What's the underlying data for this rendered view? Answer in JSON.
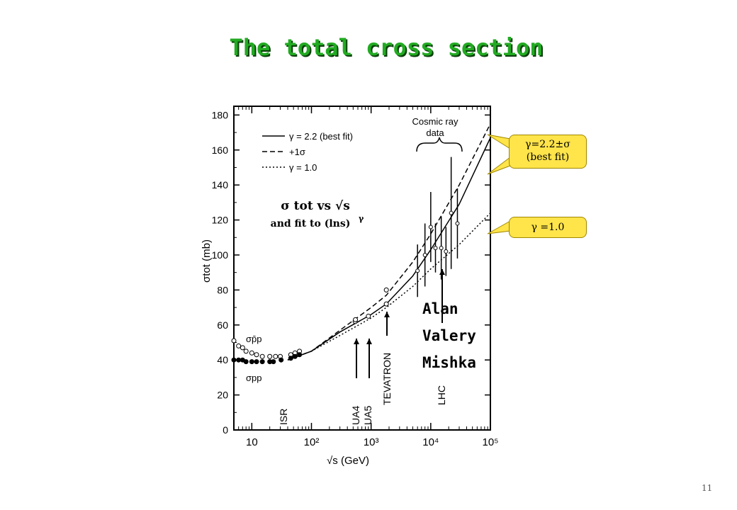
{
  "slide": {
    "title": "The total cross section",
    "page_number": "11"
  },
  "colors": {
    "title": "#22aa22",
    "callout_fill": "#ffe44a",
    "ink": "#000000"
  },
  "callouts": {
    "best_fit_line1": "γ=2.2±σ",
    "best_fit_line2": "(best fit)",
    "gamma_one": "γ =1.0"
  },
  "names": [
    "Alan",
    "Valery",
    "Mishka"
  ],
  "chart_data": {
    "type": "scatter",
    "x_scale": "log",
    "xlim": [
      5,
      100000
    ],
    "ylim": [
      0,
      185
    ],
    "xlabel": "√s (GeV)",
    "ylabel": "σtot (mb)",
    "x_ticks": [
      "10",
      "10²",
      "10³",
      "10⁴",
      "10⁵"
    ],
    "y_ticks": [
      0,
      20,
      40,
      60,
      80,
      100,
      120,
      140,
      160,
      180
    ],
    "legend": {
      "position": "top-left",
      "entries": [
        {
          "style": "solid",
          "label": "γ = 2.2 (best fit)"
        },
        {
          "style": "dashed",
          "label": "+1σ"
        },
        {
          "style": "dotted",
          "label": "γ = 1.0"
        }
      ]
    },
    "inner_title_line1": "σ tot vs √s",
    "inner_title_line2": "and fit to (lns)",
    "inner_title_sup": "γ",
    "cosmic_label_line1": "Cosmic ray",
    "cosmic_label_line2": "data",
    "experiment_labels": [
      "ISR",
      "UA4",
      "UA5",
      "TEVATRON",
      "LHC"
    ],
    "series_labels": [
      "σp̄p",
      "σpp"
    ],
    "series": [
      {
        "name": "γ = 2.2 (best fit)",
        "style": "solid",
        "x": [
          40,
          100,
          300,
          1000,
          1800,
          5000,
          10000,
          30000,
          100000
        ],
        "values": [
          40,
          45,
          56,
          66,
          72,
          88,
          103,
          129,
          167
        ]
      },
      {
        "name": "+1σ",
        "style": "dashed",
        "x": [
          40,
          100,
          300,
          1000,
          1800,
          5000,
          10000,
          30000,
          100000
        ],
        "values": [
          40,
          45,
          57,
          70,
          77,
          96,
          112,
          140,
          175
        ]
      },
      {
        "name": "γ = 1.0",
        "style": "dotted",
        "x": [
          40,
          100,
          300,
          1000,
          1800,
          5000,
          10000,
          30000,
          100000
        ],
        "values": [
          40,
          45,
          54,
          64,
          70,
          82,
          92,
          106,
          124
        ]
      },
      {
        "name": "σp̄p",
        "style": "data",
        "x": [
          5,
          6,
          7,
          8,
          10,
          12,
          15,
          20,
          25,
          30,
          45,
          53,
          63,
          540,
          546,
          900,
          1800,
          1800
        ],
        "values": [
          51,
          48,
          47,
          45,
          44,
          43,
          42,
          42,
          42,
          42,
          43,
          44,
          45,
          62,
          63,
          65,
          72,
          80
        ]
      },
      {
        "name": "σpp",
        "style": "data",
        "x": [
          5,
          6,
          7,
          8,
          10,
          12,
          15,
          20,
          23,
          31,
          45,
          53,
          63
        ],
        "values": [
          40,
          40,
          40,
          39,
          39,
          39,
          39,
          39,
          39,
          40,
          41,
          42,
          43
        ]
      }
    ],
    "cosmic_points": [
      {
        "x": 6000,
        "y": 91,
        "err": 15
      },
      {
        "x": 8000,
        "y": 100,
        "err": 18
      },
      {
        "x": 10000,
        "y": 116,
        "err": 20
      },
      {
        "x": 12000,
        "y": 104,
        "err": 14
      },
      {
        "x": 15000,
        "y": 104,
        "err": 18
      },
      {
        "x": 18000,
        "y": 102,
        "err": 14
      },
      {
        "x": 22000,
        "y": 124,
        "err": 32
      },
      {
        "x": 28000,
        "y": 118,
        "err": 20
      }
    ]
  }
}
